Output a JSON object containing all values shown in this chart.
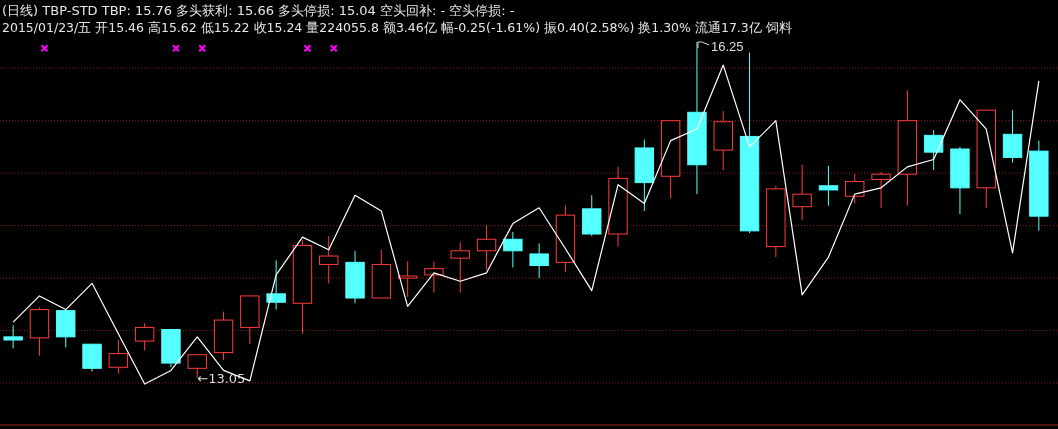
{
  "chart_data": {
    "type": "candlestick",
    "title": "(日线) TBP-STD TBP: 15.76 多头获利: 15.66 多头停损: 15.04 空头回补: - 空头停损: -",
    "subtitle": "2015/01/23/五 开15.46 高15.62 低15.22 收15.24 量224055.8 额3.46亿 幅-0.25(-1.61%) 振0.40(2.58%) 换1.30% 流通17.3亿 饲料",
    "categories": [
      null,
      null,
      null,
      null,
      null,
      null,
      null,
      null,
      null,
      null,
      null,
      null,
      null,
      null,
      null,
      null,
      null,
      null,
      null,
      null,
      null,
      null,
      null,
      null,
      null,
      null,
      null,
      null,
      null,
      null,
      null,
      null,
      null,
      null,
      null,
      null,
      null,
      null,
      null,
      null
    ],
    "ohlc": [
      [
        13.44,
        13.55,
        13.33,
        13.41
      ],
      [
        13.43,
        13.72,
        13.26,
        13.7
      ],
      [
        13.69,
        13.7,
        13.34,
        13.44
      ],
      [
        13.37,
        13.37,
        13.11,
        13.14
      ],
      [
        13.15,
        13.41,
        13.09,
        13.28
      ],
      [
        13.4,
        13.57,
        13.31,
        13.53
      ],
      [
        13.51,
        13.51,
        13.15,
        13.19
      ],
      [
        13.14,
        13.27,
        13.05,
        13.27
      ],
      [
        13.29,
        13.68,
        13.22,
        13.6
      ],
      [
        13.53,
        13.83,
        13.37,
        13.83
      ],
      [
        13.85,
        14.17,
        13.7,
        13.77
      ],
      [
        13.76,
        14.36,
        13.47,
        14.31
      ],
      [
        14.13,
        14.4,
        13.95,
        14.21
      ],
      [
        14.15,
        14.26,
        13.76,
        13.81
      ],
      [
        13.81,
        14.27,
        13.81,
        14.13
      ],
      [
        14.0,
        14.16,
        13.82,
        14.02
      ],
      [
        14.03,
        14.16,
        13.86,
        14.09
      ],
      [
        14.19,
        14.34,
        13.86,
        14.26
      ],
      [
        14.26,
        14.5,
        14.08,
        14.37
      ],
      [
        14.37,
        14.44,
        14.1,
        14.26
      ],
      [
        14.23,
        14.33,
        14.0,
        14.12
      ],
      [
        14.15,
        14.69,
        14.06,
        14.6
      ],
      [
        14.66,
        14.79,
        14.4,
        14.42
      ],
      [
        14.42,
        15.06,
        14.3,
        14.95
      ],
      [
        15.24,
        15.32,
        14.64,
        14.91
      ],
      [
        14.97,
        15.5,
        14.76,
        15.5
      ],
      [
        15.58,
        16.25,
        14.8,
        15.08
      ],
      [
        15.22,
        15.59,
        15.03,
        15.49
      ],
      [
        15.35,
        16.15,
        14.43,
        14.45
      ],
      [
        14.3,
        14.88,
        14.2,
        14.85
      ],
      [
        14.68,
        15.08,
        14.55,
        14.8
      ],
      [
        14.88,
        15.07,
        14.69,
        14.84
      ],
      [
        14.78,
        14.99,
        14.71,
        14.92
      ],
      [
        14.94,
        15.01,
        14.67,
        14.99
      ],
      [
        14.99,
        15.79,
        14.69,
        15.5
      ],
      [
        15.36,
        15.41,
        15.03,
        15.2
      ],
      [
        15.23,
        15.25,
        14.61,
        14.86
      ],
      [
        14.86,
        15.6,
        14.67,
        15.6
      ],
      [
        15.37,
        15.6,
        15.1,
        15.15
      ],
      [
        15.21,
        15.31,
        14.45,
        14.59
      ]
    ],
    "colors": [
      "#54ffff",
      "#ff3c3c",
      "#54ffff",
      "#54ffff",
      "#ff3c3c",
      "#ff3c3c",
      "#54ffff",
      "#ff3c3c",
      "#ff3c3c",
      "#ff3c3c",
      "#54ffff",
      "#ff3c3c",
      "#ff3c3c",
      "#54ffff",
      "#ff3c3c",
      "#ff3c3c",
      "#ff3c3c",
      "#ff3c3c",
      "#ff3c3c",
      "#54ffff",
      "#54ffff",
      "#ff3c3c",
      "#54ffff",
      "#ff3c3c",
      "#54ffff",
      "#ff3c3c",
      "#54ffff",
      "#ff3c3c",
      "#54ffff",
      "#ff3c3c",
      "#ff3c3c",
      "#54ffff",
      "#ff3c3c",
      "#ff3c3c",
      "#ff3c3c",
      "#54ffff",
      "#54ffff",
      "#ff3c3c",
      "#54ffff",
      "#54ffff"
    ],
    "series": [
      {
        "type": "line",
        "color": "#ffffff",
        "values": [
          13.58,
          13.83,
          13.7,
          13.95,
          13.47,
          12.99,
          13.12,
          13.44,
          13.12,
          13.02,
          14.03,
          14.39,
          14.27,
          14.79,
          14.64,
          13.73,
          14.05,
          13.97,
          14.05,
          14.52,
          14.67,
          14.28,
          13.88,
          14.89,
          14.71,
          15.31,
          15.42,
          16.03,
          15.25,
          15.5,
          13.84,
          14.2,
          14.8,
          14.86,
          15.06,
          15.13,
          15.7,
          15.42,
          14.24,
          15.88
        ]
      },
      {
        "type": "scatter",
        "color": "#ff00ff",
        "marker": "cross",
        "values": [
          null,
          16.19,
          null,
          null,
          null,
          null,
          16.19,
          16.19,
          null,
          null,
          null,
          16.19,
          16.19,
          null,
          null,
          null,
          null,
          null,
          null,
          null,
          null,
          null,
          null,
          null,
          null,
          null,
          null,
          null,
          null,
          null,
          null,
          null,
          null,
          null,
          null,
          null,
          null,
          null,
          null,
          null
        ]
      }
    ],
    "annotations": [
      "16.25",
      "←13.05"
    ],
    "ylim": [
      12.6,
      16.65
    ],
    "yticks": [
      {
        "value": 13,
        "label": null
      },
      {
        "value": 13.5,
        "label": null
      },
      {
        "value": 14,
        "label": null
      },
      {
        "value": 14.5,
        "label": null
      },
      {
        "value": 15,
        "label": null
      },
      {
        "value": 15.5,
        "label": null
      },
      {
        "value": 16,
        "label": null
      }
    ],
    "grid": "y"
  }
}
